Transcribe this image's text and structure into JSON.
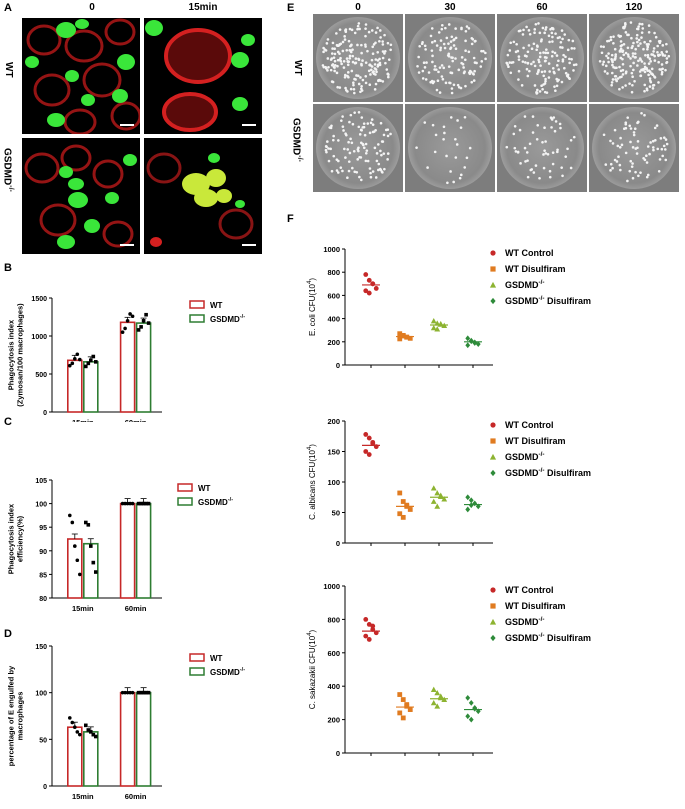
{
  "figure": {
    "panels": {
      "A": {
        "label": "A",
        "col_labels": [
          "0",
          "15min"
        ],
        "row_labels": [
          "WT",
          "GSDMD-/-"
        ]
      },
      "E": {
        "label": "E",
        "col_labels": [
          "0",
          "30",
          "60",
          "120"
        ],
        "row_labels": [
          "WT",
          "GSDMD-/-"
        ]
      },
      "B": {
        "label": "B"
      },
      "C": {
        "label": "C"
      },
      "D": {
        "label": "D"
      },
      "F": {
        "label": "F"
      }
    },
    "colors": {
      "wt": "#c62828",
      "gsdmd": "#2e7d32",
      "wt_control": "#c62828",
      "wt_disulfiram": "#e07b20",
      "gsdmd_only": "#8db331",
      "gsdmd_disulfiram": "#2e8b3a"
    }
  },
  "chart_data": [
    {
      "id": "B",
      "type": "bar",
      "categories": [
        "15min",
        "60min"
      ],
      "ylabel": "Phagocytosis index\n(Zymosan/100 macrophages)",
      "ylim": [
        0,
        1500
      ],
      "yticks": [
        0,
        500,
        1000,
        1500
      ],
      "series": [
        {
          "name": "WT",
          "values": [
            680,
            1180
          ],
          "points": [
            [
              610,
              640,
              700,
              760,
              690
            ],
            [
              1050,
              1100,
              1200,
              1290,
              1260
            ]
          ]
        },
        {
          "name": "GSDMD-/-",
          "values": [
            660,
            1170
          ],
          "points": [
            [
              600,
              640,
              680,
              730,
              660
            ],
            [
              1080,
              1120,
              1200,
              1280,
              1170
            ]
          ]
        }
      ]
    },
    {
      "id": "C",
      "type": "bar",
      "categories": [
        "15min",
        "60min"
      ],
      "ylabel": "Phagocytosis index\nefficiency(%)",
      "ylim": [
        80,
        105
      ],
      "yticks": [
        80,
        85,
        90,
        95,
        100,
        105
      ],
      "series": [
        {
          "name": "WT",
          "values": [
            92.5,
            100
          ],
          "points": [
            [
              97.5,
              96,
              91,
              88,
              85
            ],
            [
              100,
              100,
              100,
              100,
              100
            ]
          ]
        },
        {
          "name": "GSDMD-/-",
          "values": [
            91.5,
            100
          ],
          "points": [
            [
              96,
              95.5,
              91,
              87.5,
              85.5
            ],
            [
              100,
              100,
              100,
              100,
              100
            ]
          ]
        }
      ]
    },
    {
      "id": "D",
      "type": "bar",
      "categories": [
        "15min",
        "60min"
      ],
      "ylabel": "percentage of E engulfed by\nmacrophages",
      "ylim": [
        0,
        150
      ],
      "yticks": [
        0,
        50,
        100,
        150
      ],
      "series": [
        {
          "name": "WT",
          "values": [
            63,
            100
          ],
          "points": [
            [
              73,
              68,
              63,
              58,
              55
            ],
            [
              100,
              100,
              100,
              100,
              100
            ]
          ]
        },
        {
          "name": "GSDMD-/-",
          "values": [
            58,
            100
          ],
          "points": [
            [
              65,
              60,
              58,
              55,
              53
            ],
            [
              100,
              100,
              100,
              100,
              100
            ]
          ]
        }
      ]
    },
    {
      "id": "F1",
      "type": "scatter",
      "ylabel": "E. coli CFU(10",
      "ylabel_sup": "4",
      "ylim": [
        0,
        1000
      ],
      "yticks": [
        0,
        200,
        400,
        600,
        800,
        1000
      ],
      "series": [
        {
          "name": "WT Control",
          "mean": 690,
          "points": [
            780,
            730,
            700,
            660,
            640,
            620,
            700
          ]
        },
        {
          "name": "WT Disulfiram",
          "mean": 245,
          "points": [
            270,
            255,
            240,
            230,
            225,
            250,
            240
          ]
        },
        {
          "name": "GSDMD-/-",
          "mean": 345,
          "points": [
            380,
            360,
            350,
            340,
            320,
            310,
            355
          ]
        },
        {
          "name": "GSDMD-/- Disulfiram",
          "mean": 200,
          "points": [
            230,
            210,
            195,
            180,
            170,
            205,
            190
          ]
        }
      ]
    },
    {
      "id": "F2",
      "type": "scatter",
      "ylabel": "C. albicans CFU(10",
      "ylabel_sup": "4",
      "ylim": [
        0,
        200
      ],
      "yticks": [
        0,
        50,
        100,
        150,
        200
      ],
      "series": [
        {
          "name": "WT Control",
          "mean": 160,
          "points": [
            178,
            172,
            165,
            158,
            150,
            145,
            163
          ]
        },
        {
          "name": "WT Disulfiram",
          "mean": 60,
          "points": [
            82,
            68,
            60,
            55,
            48,
            42,
            62
          ]
        },
        {
          "name": "GSDMD-/-",
          "mean": 75,
          "points": [
            90,
            82,
            76,
            72,
            68,
            60,
            78
          ]
        },
        {
          "name": "GSDMD-/- Disulfiram",
          "mean": 63,
          "points": [
            75,
            70,
            65,
            60,
            55,
            62
          ]
        }
      ]
    },
    {
      "id": "F3",
      "type": "scatter",
      "ylabel": "C. sakazakii CFU(10",
      "ylabel_sup": "4",
      "ylim": [
        0,
        1000
      ],
      "yticks": [
        0,
        200,
        400,
        600,
        800,
        1000
      ],
      "series": [
        {
          "name": "WT Control",
          "mean": 730,
          "points": [
            800,
            770,
            740,
            720,
            700,
            680,
            760
          ]
        },
        {
          "name": "WT Disulfiram",
          "mean": 275,
          "points": [
            350,
            320,
            290,
            260,
            240,
            210,
            280
          ]
        },
        {
          "name": "GSDMD-/-",
          "mean": 325,
          "points": [
            380,
            360,
            340,
            320,
            300,
            280,
            330
          ]
        },
        {
          "name": "GSDMD-/- Disulfiram",
          "mean": 260,
          "points": [
            330,
            300,
            270,
            250,
            220,
            200,
            265
          ]
        }
      ]
    }
  ]
}
